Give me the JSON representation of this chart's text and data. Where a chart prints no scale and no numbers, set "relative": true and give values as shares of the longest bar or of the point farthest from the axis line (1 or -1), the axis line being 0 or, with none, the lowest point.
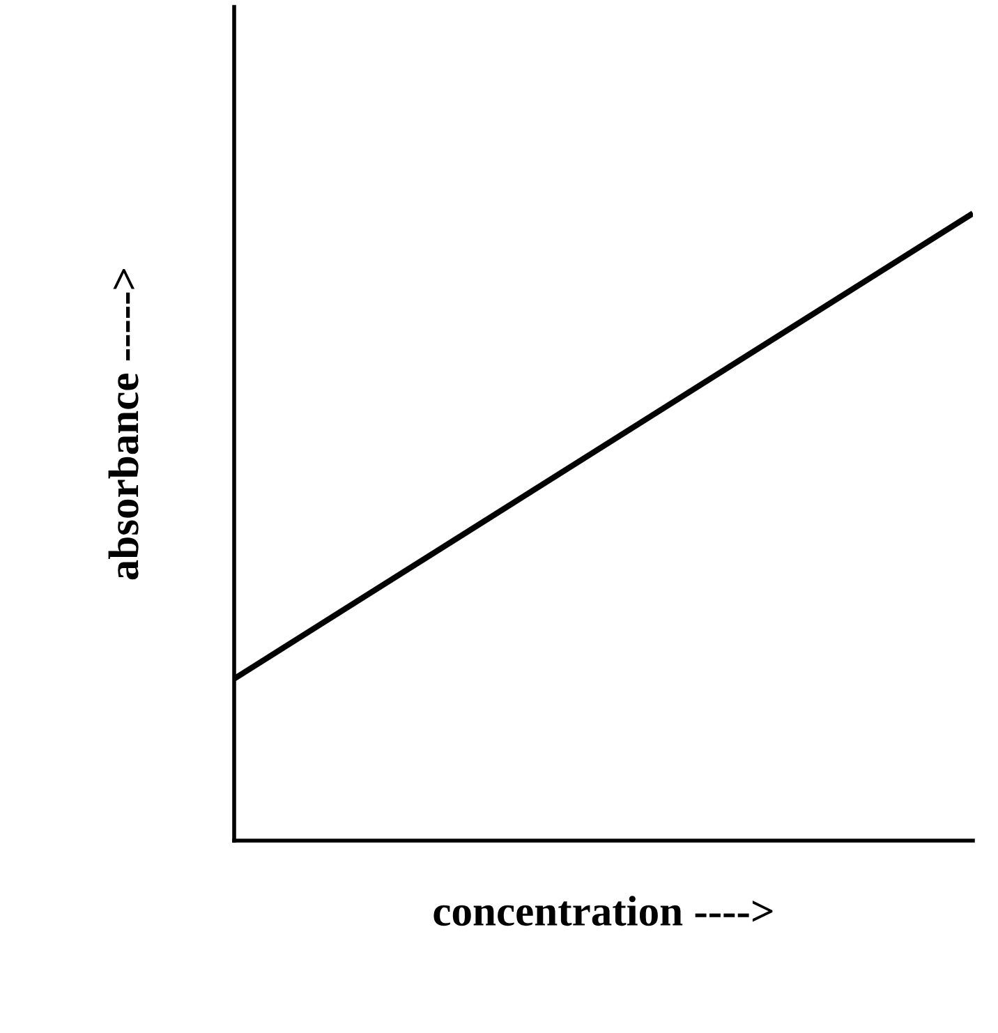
{
  "chart_data": {
    "type": "line",
    "relative": true,
    "xlabel": "concentration ---->",
    "ylabel": "absorbance ----->",
    "categories": [
      null,
      null
    ],
    "series": [
      {
        "color": "#000000",
        "values": [
          0.258,
          1
        ]
      }
    ],
    "grid": false,
    "legend": false,
    "marker": "none",
    "line_style": "solid"
  }
}
